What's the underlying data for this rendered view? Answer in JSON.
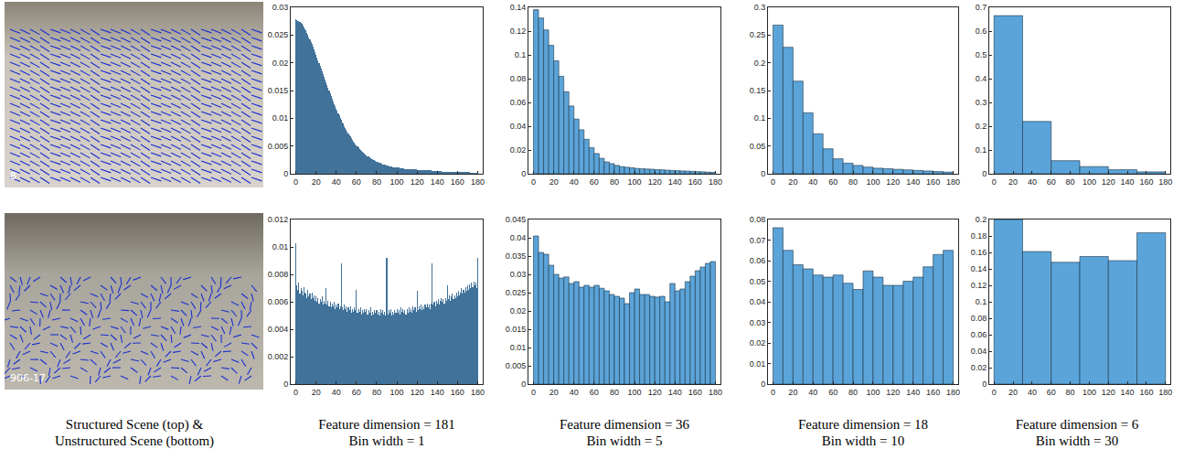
{
  "chart_data": [
    {
      "type": "histogram",
      "color": "#41729a",
      "grid": false,
      "xlim": [
        -5,
        185
      ],
      "xticks": [
        0,
        20,
        40,
        60,
        80,
        100,
        120,
        140,
        160,
        180
      ],
      "ylim": [
        0,
        0.03
      ],
      "yticks": [
        0,
        0.005,
        0.01,
        0.015,
        0.02,
        0.025,
        0.03
      ],
      "bins": [
        -0.5,
        0.5,
        1.5,
        2.5,
        3.5,
        4.5,
        5.5,
        6.5,
        7.5,
        8.5,
        9.5,
        10.5,
        11.5,
        12.5,
        13.5,
        14.5,
        15.5,
        16.5,
        17.5,
        18.5,
        19.5,
        20.5,
        21.5,
        22.5,
        23.5,
        24.5,
        25.5,
        26.5,
        27.5,
        28.5,
        29.5,
        30.5,
        31.5,
        32.5,
        33.5,
        34.5,
        35.5,
        36.5,
        37.5,
        38.5,
        39.5,
        40.5,
        41.5,
        42.5,
        43.5,
        44.5,
        45.5,
        46.5,
        47.5,
        48.5,
        49.5,
        50.5,
        51.5,
        52.5,
        53.5,
        54.5,
        55.5,
        56.5,
        57.5,
        58.5,
        59.5,
        60.5,
        61.5,
        62.5,
        63.5,
        64.5,
        65.5,
        66.5,
        67.5,
        68.5,
        69.5,
        70.5,
        71.5,
        72.5,
        73.5,
        74.5,
        75.5,
        76.5,
        77.5,
        78.5,
        79.5,
        80.5,
        81.5,
        82.5,
        83.5,
        84.5,
        85.5,
        86.5,
        87.5,
        88.5,
        89.5,
        90.5,
        91.5,
        92.5,
        93.5,
        94.5,
        95.5,
        96.5,
        97.5,
        98.5,
        99.5,
        100.5,
        101.5,
        102.5,
        103.5,
        104.5,
        105.5,
        106.5,
        107.5,
        108.5,
        109.5,
        110.5,
        111.5,
        112.5,
        113.5,
        114.5,
        115.5,
        116.5,
        117.5,
        118.5,
        119.5,
        120.5,
        121.5,
        122.5,
        123.5,
        124.5,
        125.5,
        126.5,
        127.5,
        128.5,
        129.5,
        130.5,
        131.5,
        132.5,
        133.5,
        134.5,
        135.5,
        136.5,
        137.5,
        138.5,
        139.5,
        140.5,
        141.5,
        142.5,
        143.5,
        144.5,
        145.5,
        146.5,
        147.5,
        148.5,
        149.5,
        150.5,
        151.5,
        152.5,
        153.5,
        154.5,
        155.5,
        156.5,
        157.5,
        158.5,
        159.5,
        160.5,
        161.5,
        162.5,
        163.5,
        164.5,
        165.5,
        166.5,
        167.5,
        168.5,
        169.5,
        170.5,
        171.5,
        172.5,
        173.5,
        174.5,
        175.5,
        176.5,
        177.5,
        178.5,
        179.5,
        180.5
      ],
      "values": [
        0.0278,
        0.0277,
        0.0276,
        0.0275,
        0.0273,
        0.0272,
        0.027,
        0.0267,
        0.0264,
        0.0261,
        0.0258,
        0.0254,
        0.025,
        0.0246,
        0.0242,
        0.0238,
        0.0234,
        0.0229,
        0.0224,
        0.022,
        0.0215,
        0.021,
        0.0205,
        0.02,
        0.0195,
        0.019,
        0.0185,
        0.018,
        0.0175,
        0.017,
        0.0165,
        0.016,
        0.0155,
        0.015,
        0.0145,
        0.014,
        0.0135,
        0.0131,
        0.0126,
        0.0122,
        0.0117,
        0.0113,
        0.0109,
        0.0105,
        0.0101,
        0.0097,
        0.0093,
        0.009,
        0.0086,
        0.0083,
        0.0079,
        0.0076,
        0.0073,
        0.007,
        0.0067,
        0.0064,
        0.0061,
        0.0058,
        0.0056,
        0.0053,
        0.0051,
        0.0049,
        0.0047,
        0.0045,
        0.0043,
        0.0041,
        0.0039,
        0.0038,
        0.0036,
        0.0035,
        0.0033,
        0.0032,
        0.0031,
        0.0029,
        0.0028,
        0.0027,
        0.0026,
        0.0025,
        0.0024,
        0.0023,
        0.0022,
        0.0021,
        0.002,
        0.002,
        0.0019,
        0.0018,
        0.0017,
        0.0017,
        0.0016,
        0.0016,
        0.0015,
        0.0015,
        0.0014,
        0.0014,
        0.0013,
        0.0013,
        0.0012,
        0.0012,
        0.0012,
        0.0011,
        0.0011,
        0.0011,
        0.0011,
        0.001,
        0.001,
        0.001,
        0.001,
        0.001,
        0.0009,
        0.0009,
        0.0009,
        0.0009,
        0.0009,
        0.0009,
        0.0008,
        0.0008,
        0.0008,
        0.0008,
        0.0008,
        0.0008,
        0.0007,
        0.0007,
        0.0007,
        0.0007,
        0.0007,
        0.0007,
        0.0007,
        0.0006,
        0.0006,
        0.0006,
        0.0006,
        0.0006,
        0.0006,
        0.0006,
        0.0006,
        0.0005,
        0.0005,
        0.0005,
        0.0005,
        0.0005,
        0.0005,
        0.0005,
        0.0005,
        0.0005,
        0.0005,
        0.0004,
        0.0004,
        0.0004,
        0.0004,
        0.0004,
        0.0004,
        0.0004,
        0.0004,
        0.0004,
        0.0004,
        0.0004,
        0.0003,
        0.0003,
        0.0003,
        0.0003,
        0.0003,
        0.0003,
        0.0003,
        0.0003,
        0.0003,
        0.0003,
        0.0003,
        0.0003,
        0.0003,
        0.0003,
        0.0003,
        0.0003,
        0.0003,
        0.0002,
        0.0002,
        0.0002,
        0.0002,
        0.0002,
        0.0002,
        0.0002,
        0.0002
      ]
    },
    {
      "type": "histogram",
      "color": "#5ba4d9",
      "grid": false,
      "xlim": [
        -5,
        185
      ],
      "xticks": [
        0,
        20,
        40,
        60,
        80,
        100,
        120,
        140,
        160,
        180
      ],
      "ylim": [
        0,
        0.14
      ],
      "yticks": [
        0,
        0.02,
        0.04,
        0.06,
        0.08,
        0.1,
        0.12,
        0.14
      ],
      "bins": [
        0,
        5,
        10,
        15,
        20,
        25,
        30,
        35,
        40,
        45,
        50,
        55,
        60,
        65,
        70,
        75,
        80,
        85,
        90,
        95,
        100,
        105,
        110,
        115,
        120,
        125,
        130,
        135,
        140,
        145,
        150,
        155,
        160,
        165,
        170,
        175,
        180
      ],
      "values": [
        0.138,
        0.131,
        0.121,
        0.108,
        0.095,
        0.082,
        0.069,
        0.057,
        0.046,
        0.037,
        0.029,
        0.022,
        0.017,
        0.013,
        0.01,
        0.0085,
        0.007,
        0.006,
        0.0055,
        0.005,
        0.0045,
        0.0042,
        0.004,
        0.0038,
        0.0035,
        0.0033,
        0.003,
        0.0028,
        0.0026,
        0.0024,
        0.0022,
        0.002,
        0.0018,
        0.0016,
        0.0014,
        0.0012
      ]
    },
    {
      "type": "histogram",
      "color": "#5ba4d9",
      "grid": false,
      "xlim": [
        -5,
        185
      ],
      "xticks": [
        0,
        20,
        40,
        60,
        80,
        100,
        120,
        140,
        160,
        180
      ],
      "ylim": [
        0,
        0.3
      ],
      "yticks": [
        0,
        0.05,
        0.1,
        0.15,
        0.2,
        0.25,
        0.3
      ],
      "bins": [
        0,
        10,
        20,
        30,
        40,
        50,
        60,
        70,
        80,
        90,
        100,
        110,
        120,
        130,
        140,
        150,
        160,
        170,
        180
      ],
      "values": [
        0.268,
        0.228,
        0.167,
        0.11,
        0.072,
        0.045,
        0.027,
        0.019,
        0.015,
        0.012,
        0.01,
        0.009,
        0.008,
        0.007,
        0.006,
        0.005,
        0.004,
        0.003
      ]
    },
    {
      "type": "histogram",
      "color": "#5ba4d9",
      "grid": false,
      "xlim": [
        -5,
        185
      ],
      "xticks": [
        0,
        20,
        40,
        60,
        80,
        100,
        120,
        140,
        160,
        180
      ],
      "ylim": [
        0,
        0.7
      ],
      "yticks": [
        0,
        0.1,
        0.2,
        0.3,
        0.4,
        0.5,
        0.6,
        0.7
      ],
      "bins": [
        0,
        30,
        60,
        90,
        120,
        150,
        180
      ],
      "values": [
        0.665,
        0.22,
        0.055,
        0.03,
        0.017,
        0.008
      ]
    },
    {
      "type": "histogram",
      "color": "#41729a",
      "grid": false,
      "xlim": [
        -5,
        185
      ],
      "xticks": [
        0,
        20,
        40,
        60,
        80,
        100,
        120,
        140,
        160,
        180
      ],
      "ylim": [
        0,
        0.012
      ],
      "yticks": [
        0,
        0.002,
        0.004,
        0.006,
        0.008,
        0.01,
        0.012
      ],
      "bins": [
        -0.5,
        0.5,
        1.5,
        2.5,
        3.5,
        4.5,
        5.5,
        6.5,
        7.5,
        8.5,
        9.5,
        10.5,
        11.5,
        12.5,
        13.5,
        14.5,
        15.5,
        16.5,
        17.5,
        18.5,
        19.5,
        20.5,
        21.5,
        22.5,
        23.5,
        24.5,
        25.5,
        26.5,
        27.5,
        28.5,
        29.5,
        30.5,
        31.5,
        32.5,
        33.5,
        34.5,
        35.5,
        36.5,
        37.5,
        38.5,
        39.5,
        40.5,
        41.5,
        42.5,
        43.5,
        44.5,
        45.5,
        46.5,
        47.5,
        48.5,
        49.5,
        50.5,
        51.5,
        52.5,
        53.5,
        54.5,
        55.5,
        56.5,
        57.5,
        58.5,
        59.5,
        60.5,
        61.5,
        62.5,
        63.5,
        64.5,
        65.5,
        66.5,
        67.5,
        68.5,
        69.5,
        70.5,
        71.5,
        72.5,
        73.5,
        74.5,
        75.5,
        76.5,
        77.5,
        78.5,
        79.5,
        80.5,
        81.5,
        82.5,
        83.5,
        84.5,
        85.5,
        86.5,
        87.5,
        88.5,
        89.5,
        90.5,
        91.5,
        92.5,
        93.5,
        94.5,
        95.5,
        96.5,
        97.5,
        98.5,
        99.5,
        100.5,
        101.5,
        102.5,
        103.5,
        104.5,
        105.5,
        106.5,
        107.5,
        108.5,
        109.5,
        110.5,
        111.5,
        112.5,
        113.5,
        114.5,
        115.5,
        116.5,
        117.5,
        118.5,
        119.5,
        120.5,
        121.5,
        122.5,
        123.5,
        124.5,
        125.5,
        126.5,
        127.5,
        128.5,
        129.5,
        130.5,
        131.5,
        132.5,
        133.5,
        134.5,
        135.5,
        136.5,
        137.5,
        138.5,
        139.5,
        140.5,
        141.5,
        142.5,
        143.5,
        144.5,
        145.5,
        146.5,
        147.5,
        148.5,
        149.5,
        150.5,
        151.5,
        152.5,
        153.5,
        154.5,
        155.5,
        156.5,
        157.5,
        158.5,
        159.5,
        160.5,
        161.5,
        162.5,
        163.5,
        164.5,
        165.5,
        166.5,
        167.5,
        168.5,
        169.5,
        170.5,
        171.5,
        172.5,
        173.5,
        174.5,
        175.5,
        176.5,
        177.5,
        178.5,
        179.5,
        180.5
      ],
      "values": [
        0.0103,
        0.0072,
        0.0069,
        0.0074,
        0.0066,
        0.007,
        0.0068,
        0.0065,
        0.0071,
        0.0067,
        0.0066,
        0.0063,
        0.0069,
        0.0064,
        0.0066,
        0.0062,
        0.0067,
        0.0063,
        0.0065,
        0.0061,
        0.0064,
        0.006,
        0.0063,
        0.0059,
        0.0062,
        0.006,
        0.0064,
        0.0058,
        0.0061,
        0.0059,
        0.007,
        0.0058,
        0.0061,
        0.0057,
        0.006,
        0.0056,
        0.0059,
        0.0057,
        0.006,
        0.0055,
        0.0058,
        0.0056,
        0.0059,
        0.0055,
        0.0057,
        0.0088,
        0.0056,
        0.0054,
        0.0058,
        0.0055,
        0.0057,
        0.0053,
        0.0056,
        0.0054,
        0.0057,
        0.0052,
        0.0055,
        0.0053,
        0.0056,
        0.0054,
        0.0069,
        0.0052,
        0.0055,
        0.0053,
        0.0056,
        0.0051,
        0.0054,
        0.0052,
        0.0055,
        0.0053,
        0.0055,
        0.0051,
        0.0054,
        0.0052,
        0.0056,
        0.005,
        0.0053,
        0.0051,
        0.0054,
        0.0052,
        0.0054,
        0.0051,
        0.0053,
        0.005,
        0.0055,
        0.0052,
        0.0054,
        0.0051,
        0.0053,
        0.005,
        0.0092,
        0.0051,
        0.0054,
        0.0052,
        0.0055,
        0.005,
        0.0053,
        0.0051,
        0.0054,
        0.0052,
        0.0055,
        0.0052,
        0.0054,
        0.0051,
        0.0056,
        0.0053,
        0.0055,
        0.0052,
        0.0054,
        0.0051,
        0.0055,
        0.0052,
        0.0056,
        0.0053,
        0.0055,
        0.0052,
        0.0057,
        0.0054,
        0.0056,
        0.0053,
        0.0068,
        0.0054,
        0.0057,
        0.0055,
        0.0058,
        0.0054,
        0.0057,
        0.0055,
        0.0058,
        0.0056,
        0.0059,
        0.0056,
        0.0058,
        0.0055,
        0.0059,
        0.0088,
        0.0058,
        0.006,
        0.0057,
        0.0061,
        0.0059,
        0.0062,
        0.0058,
        0.0061,
        0.0063,
        0.006,
        0.0062,
        0.0059,
        0.0063,
        0.0061,
        0.0072,
        0.0062,
        0.0065,
        0.0061,
        0.0064,
        0.0066,
        0.0062,
        0.0065,
        0.0063,
        0.0067,
        0.0064,
        0.0068,
        0.0065,
        0.0067,
        0.007,
        0.0066,
        0.0069,
        0.0067,
        0.0071,
        0.0068,
        0.0072,
        0.0069,
        0.0073,
        0.007,
        0.0074,
        0.0071,
        0.0075,
        0.0072,
        0.0074,
        0.007,
        0.0092
      ]
    },
    {
      "type": "histogram",
      "color": "#5ba4d9",
      "grid": false,
      "xlim": [
        -5,
        185
      ],
      "xticks": [
        0,
        20,
        40,
        60,
        80,
        100,
        120,
        140,
        160,
        180
      ],
      "ylim": [
        0,
        0.045
      ],
      "yticks": [
        0,
        0.005,
        0.01,
        0.015,
        0.02,
        0.025,
        0.03,
        0.035,
        0.04,
        0.045
      ],
      "bins": [
        0,
        5,
        10,
        15,
        20,
        25,
        30,
        35,
        40,
        45,
        50,
        55,
        60,
        65,
        70,
        75,
        80,
        85,
        90,
        95,
        100,
        105,
        110,
        115,
        120,
        125,
        130,
        135,
        140,
        145,
        150,
        155,
        160,
        165,
        170,
        175,
        180
      ],
      "values": [
        0.0405,
        0.036,
        0.0355,
        0.0325,
        0.03,
        0.029,
        0.0293,
        0.0275,
        0.028,
        0.0265,
        0.027,
        0.0265,
        0.027,
        0.0262,
        0.0255,
        0.0245,
        0.024,
        0.0235,
        0.022,
        0.025,
        0.026,
        0.0245,
        0.0245,
        0.024,
        0.0238,
        0.024,
        0.0225,
        0.0275,
        0.0255,
        0.026,
        0.028,
        0.0295,
        0.031,
        0.032,
        0.033,
        0.0335
      ]
    },
    {
      "type": "histogram",
      "color": "#5ba4d9",
      "grid": false,
      "xlim": [
        -5,
        185
      ],
      "xticks": [
        0,
        20,
        40,
        60,
        80,
        100,
        120,
        140,
        160,
        180
      ],
      "ylim": [
        0,
        0.08
      ],
      "yticks": [
        0,
        0.01,
        0.02,
        0.03,
        0.04,
        0.05,
        0.06,
        0.07,
        0.08
      ],
      "bins": [
        0,
        10,
        20,
        30,
        40,
        50,
        60,
        70,
        80,
        90,
        100,
        110,
        120,
        130,
        140,
        150,
        160,
        170,
        180
      ],
      "values": [
        0.076,
        0.065,
        0.058,
        0.056,
        0.053,
        0.052,
        0.053,
        0.049,
        0.046,
        0.055,
        0.052,
        0.048,
        0.048,
        0.05,
        0.052,
        0.057,
        0.063,
        0.065
      ]
    },
    {
      "type": "histogram",
      "color": "#5ba4d9",
      "grid": false,
      "xlim": [
        -5,
        185
      ],
      "xticks": [
        0,
        20,
        40,
        60,
        80,
        100,
        120,
        140,
        160,
        180
      ],
      "ylim": [
        0,
        0.2
      ],
      "yticks": [
        0,
        0.02,
        0.04,
        0.06,
        0.08,
        0.1,
        0.12,
        0.14,
        0.16,
        0.18,
        0.2
      ],
      "bins": [
        0,
        30,
        60,
        90,
        120,
        150,
        180
      ],
      "values": [
        0.2,
        0.161,
        0.148,
        0.155,
        0.15,
        0.184
      ]
    }
  ],
  "scenes": [
    {
      "overlay_text": "8"
    },
    {
      "overlay_text": "906-17"
    }
  ],
  "captions": [
    [
      "Structured Scene (top) &",
      "Unstructured Scene (bottom)"
    ],
    [
      "Feature dimension = 181",
      "Bin width = 1"
    ],
    [
      "Feature dimension = 36",
      "Bin width = 5"
    ],
    [
      "Feature dimension = 18",
      "Bin width = 10"
    ],
    [
      "Feature dimension = 6",
      "Bin width = 30"
    ]
  ]
}
